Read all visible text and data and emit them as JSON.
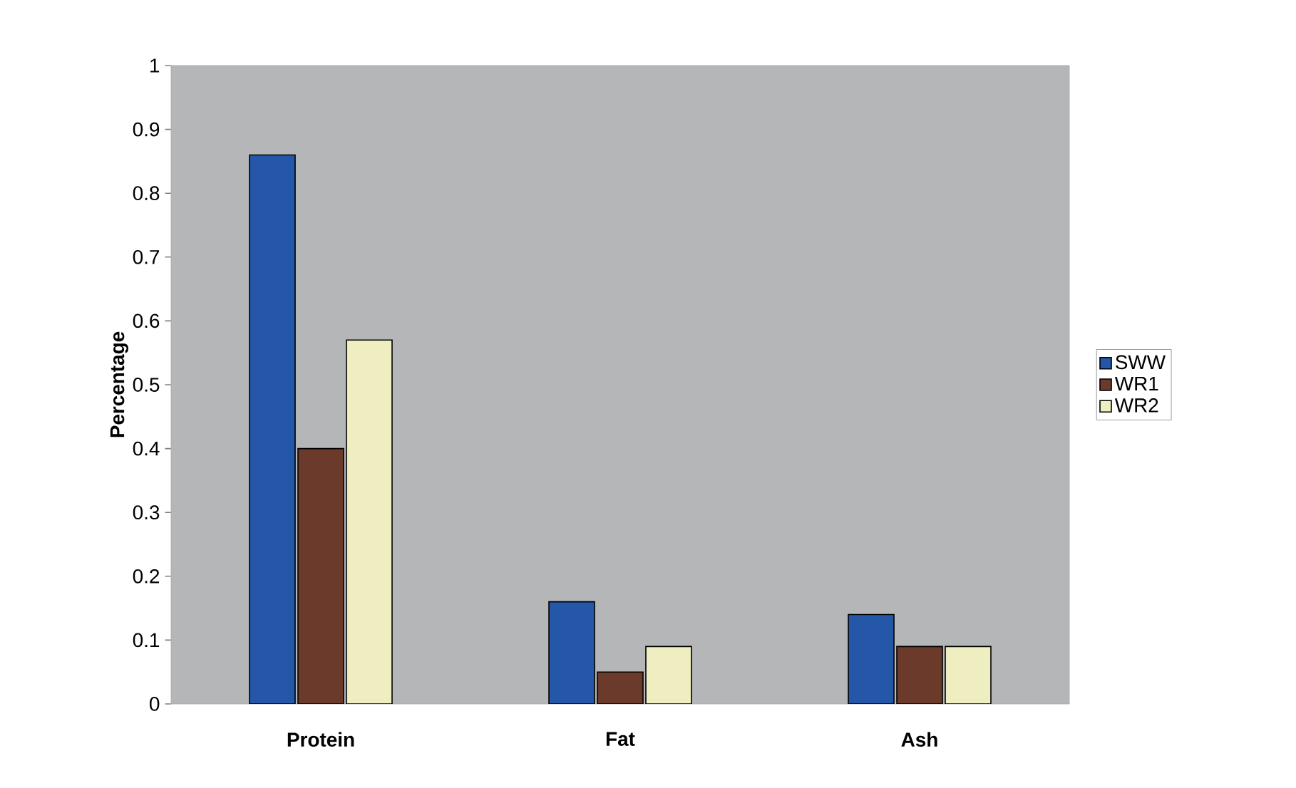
{
  "chart_data": {
    "type": "bar",
    "ylabel": "Percentage",
    "categories": [
      "Protein",
      "Fat",
      "Ash"
    ],
    "series": [
      {
        "name": "SWW",
        "color": "#2457a8",
        "values": [
          0.86,
          0.16,
          0.14
        ]
      },
      {
        "name": "WR1",
        "color": "#6b3a2a",
        "values": [
          0.4,
          0.05,
          0.09
        ]
      },
      {
        "name": "WR2",
        "color": "#eeeec0",
        "values": [
          0.57,
          0.09,
          0.09
        ]
      }
    ],
    "ylim": [
      0,
      1
    ],
    "yticks": [
      0,
      0.1,
      0.2,
      0.3,
      0.4,
      0.5,
      0.6,
      0.7,
      0.8,
      0.9,
      1
    ],
    "grid": false,
    "legend": "right"
  }
}
